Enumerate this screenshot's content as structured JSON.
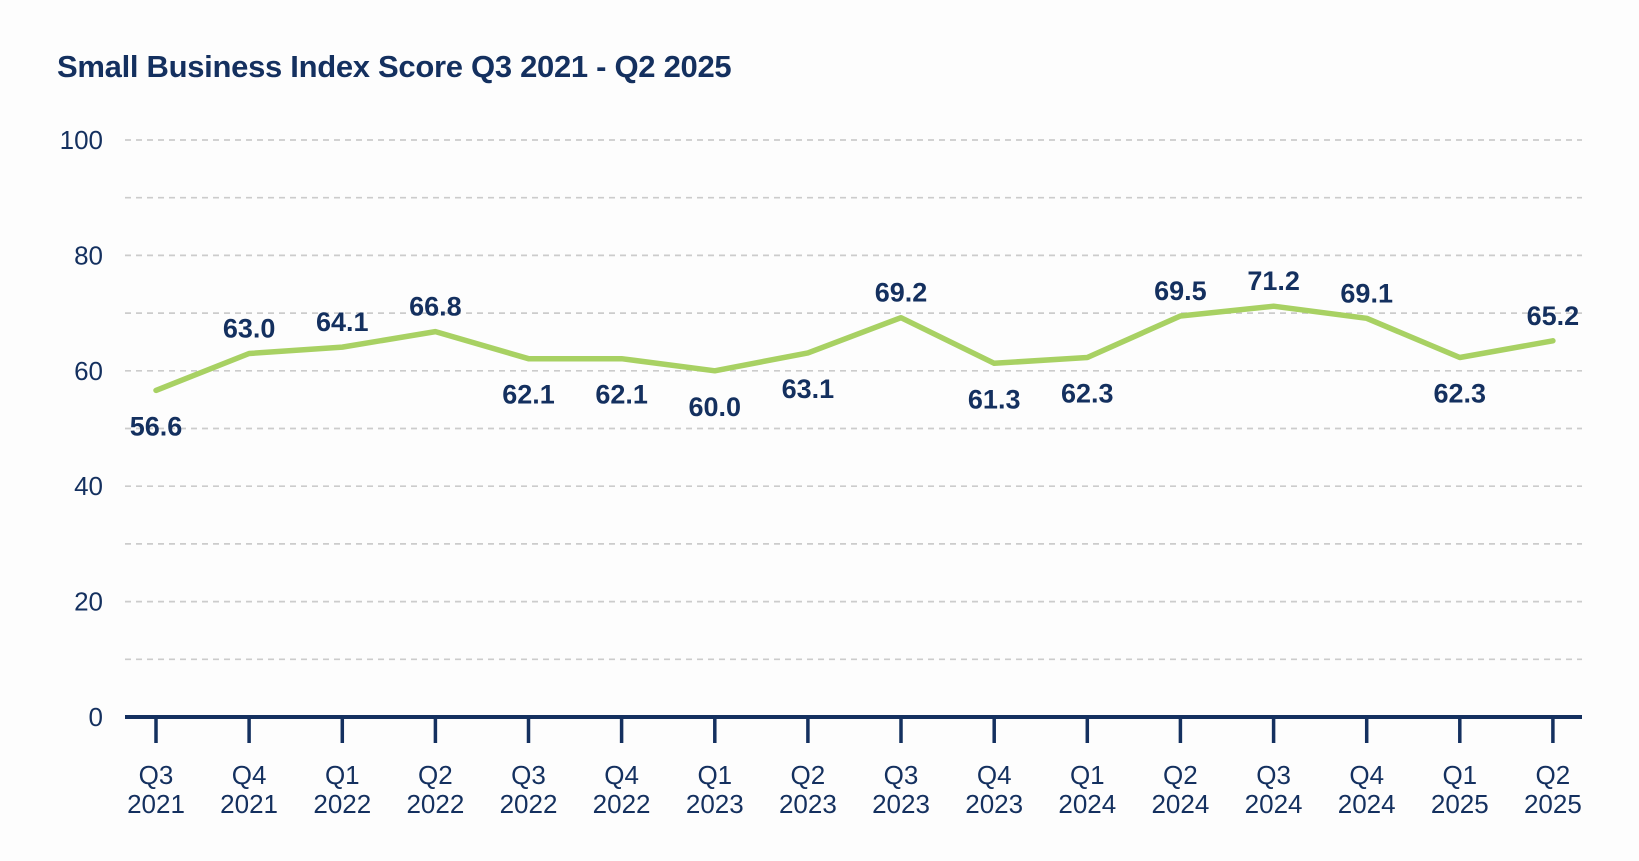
{
  "page": {
    "background": "#fdfdfd"
  },
  "chart_data": {
    "type": "line",
    "title": "Small Business Index Score Q3 2021 - Q2 2025",
    "categories": [
      "Q3 2021",
      "Q4 2021",
      "Q1 2022",
      "Q2 2022",
      "Q3 2022",
      "Q4 2022",
      "Q1 2023",
      "Q2 2023",
      "Q3 2023",
      "Q4 2023",
      "Q1 2024",
      "Q2 2024",
      "Q3 2024",
      "Q4 2024",
      "Q1 2025",
      "Q2 2025"
    ],
    "values": [
      56.6,
      63.0,
      64.1,
      66.8,
      62.1,
      62.1,
      60.0,
      63.1,
      69.2,
      61.3,
      62.3,
      69.5,
      71.2,
      69.1,
      62.3,
      65.2
    ],
    "point_labels": [
      "56.6",
      "63.0",
      "64.1",
      "66.8",
      "62.1",
      "62.1",
      "60.0",
      "63.1",
      "69.2",
      "61.3",
      "62.3",
      "69.5",
      "71.2",
      "69.1",
      "62.3",
      "65.2"
    ],
    "label_positions": [
      "below",
      "above",
      "above",
      "above",
      "below",
      "below",
      "below",
      "below",
      "above",
      "below",
      "below",
      "above",
      "above",
      "above",
      "below",
      "above"
    ],
    "xlabel": "",
    "ylabel": "",
    "ylim": [
      0,
      100
    ],
    "yticks": [
      0,
      20,
      40,
      60,
      80,
      100
    ],
    "gridline_step": 10,
    "grid_style": "dashed",
    "legend": "none",
    "colors": {
      "line": "#a8d163",
      "text": "#14305f",
      "grid": "#cccccc",
      "axis": "#14305f"
    }
  }
}
